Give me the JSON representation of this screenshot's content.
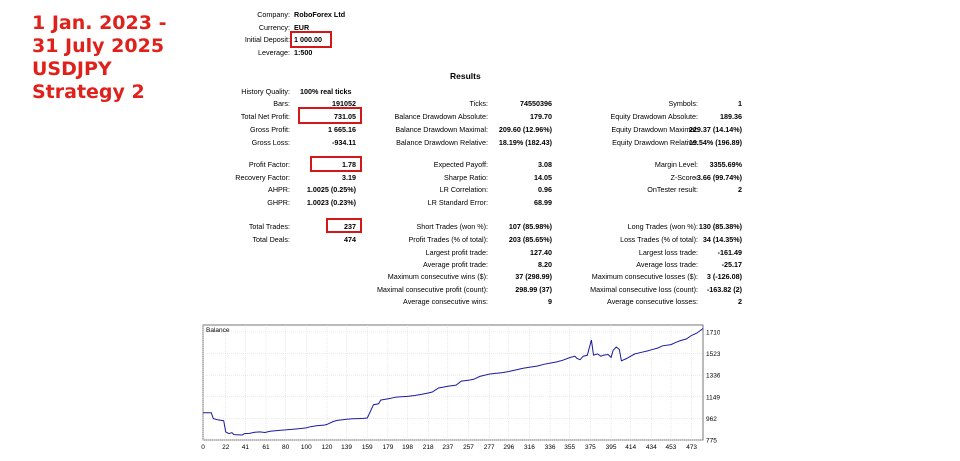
{
  "annotation": {
    "lines": [
      "1 Jan. 2023 -",
      "31 July 2025",
      "USDJPY",
      "Strategy 2"
    ],
    "color": "#e0201a"
  },
  "header": {
    "company_label": "Company:",
    "company_value": "RoboForex Ltd",
    "currency_label": "Currency:",
    "currency_value": "EUR",
    "deposit_label": "Initial Deposit:",
    "deposit_value": "1 000.00",
    "leverage_label": "Leverage:",
    "leverage_value": "1:500"
  },
  "results_title": "Results",
  "stats": {
    "history_quality_label": "History Quality:",
    "history_quality_value": "100% real ticks",
    "bars_label": "Bars:",
    "bars_value": "191052",
    "ticks_label": "Ticks:",
    "ticks_value": "74550396",
    "symbols_label": "Symbols:",
    "symbols_value": "1",
    "net_profit_label": "Total Net Profit:",
    "net_profit_value": "731.05",
    "bal_dd_abs_label": "Balance Drawdown Absolute:",
    "bal_dd_abs_value": "179.70",
    "eq_dd_abs_label": "Equity Drawdown Absolute:",
    "eq_dd_abs_value": "189.36",
    "gross_profit_label": "Gross Profit:",
    "gross_profit_value": "1 665.16",
    "bal_dd_max_label": "Balance Drawdown Maximal:",
    "bal_dd_max_value": "209.60 (12.96%)",
    "eq_dd_max_label": "Equity Drawdown Maximal:",
    "eq_dd_max_value": "229.37 (14.14%)",
    "gross_loss_label": "Gross Loss:",
    "gross_loss_value": "-934.11",
    "bal_dd_rel_label": "Balance Drawdown Relative:",
    "bal_dd_rel_value": "18.19% (182.43)",
    "eq_dd_rel_label": "Equity Drawdown Relative:",
    "eq_dd_rel_value": "19.54% (196.89)",
    "profit_factor_label": "Profit Factor:",
    "profit_factor_value": "1.78",
    "expected_payoff_label": "Expected Payoff:",
    "expected_payoff_value": "3.08",
    "margin_level_label": "Margin Level:",
    "margin_level_value": "3355.69%",
    "recovery_factor_label": "Recovery Factor:",
    "recovery_factor_value": "3.19",
    "sharpe_label": "Sharpe Ratio:",
    "sharpe_value": "14.05",
    "zscore_label": "Z-Score:",
    "zscore_value": "-3.66 (99.74%)",
    "ahpr_label": "AHPR:",
    "ahpr_value": "1.0025 (0.25%)",
    "lr_corr_label": "LR Correlation:",
    "lr_corr_value": "0.96",
    "ontester_label": "OnTester result:",
    "ontester_value": "2",
    "ghpr_label": "GHPR:",
    "ghpr_value": "1.0023 (0.23%)",
    "lr_err_label": "LR Standard Error:",
    "lr_err_value": "68.99",
    "total_trades_label": "Total Trades:",
    "total_trades_value": "237",
    "short_label": "Short Trades (won %):",
    "short_value": "107 (85.98%)",
    "long_label": "Long Trades (won %):",
    "long_value": "130 (85.38%)",
    "total_deals_label": "Total Deals:",
    "total_deals_value": "474",
    "profit_trades_label": "Profit Trades (% of total):",
    "profit_trades_value": "203 (85.65%)",
    "loss_trades_label": "Loss Trades (% of total):",
    "loss_trades_value": "34 (14.35%)",
    "largest_profit_label": "Largest profit trade:",
    "largest_profit_value": "127.40",
    "largest_loss_label": "Largest loss trade:",
    "largest_loss_value": "-161.49",
    "avg_profit_label": "Average profit trade:",
    "avg_profit_value": "8.20",
    "avg_loss_label": "Average loss trade:",
    "avg_loss_value": "-25.17",
    "max_cons_wins_label": "Maximum consecutive wins ($):",
    "max_cons_wins_value": "37 (298.99)",
    "max_cons_losses_label": "Maximum consecutive losses ($):",
    "max_cons_losses_value": "3 (-126.08)",
    "maximal_cons_profit_label": "Maximal consecutive profit (count):",
    "maximal_cons_profit_value": "298.99 (37)",
    "maximal_cons_loss_label": "Maximal consecutive loss (count):",
    "maximal_cons_loss_value": "-163.82 (2)",
    "avg_cons_wins_label": "Average consecutive wins:",
    "avg_cons_wins_value": "9",
    "avg_cons_losses_label": "Average consecutive losses:",
    "avg_cons_losses_value": "2"
  },
  "chart_data": {
    "type": "line",
    "title": "Balance",
    "xlabel": "",
    "ylabel": "",
    "x_ticks": [
      "0",
      "22",
      "41",
      "61",
      "80",
      "100",
      "120",
      "139",
      "159",
      "179",
      "198",
      "218",
      "237",
      "257",
      "277",
      "296",
      "316",
      "336",
      "355",
      "375",
      "395",
      "414",
      "434",
      "453",
      "473"
    ],
    "y_ticks": [
      "775",
      "962",
      "1149",
      "1336",
      "1523",
      "1710"
    ],
    "ylim": [
      775,
      1770
    ],
    "xlim": [
      0,
      484
    ],
    "line_color": "#1a1aa0",
    "grid": true,
    "series": [
      {
        "x": [
          0,
          8,
          10,
          14,
          20,
          22,
          25,
          28,
          30,
          38,
          40,
          45,
          50,
          55,
          60,
          65,
          70,
          75,
          80,
          90,
          100,
          104,
          110,
          118,
          120,
          126,
          130,
          135,
          139,
          145,
          150,
          155,
          159,
          165,
          170,
          172,
          178,
          182,
          186,
          190,
          198,
          205,
          212,
          218,
          222,
          228,
          232,
          237,
          245,
          250,
          257,
          262,
          268,
          277,
          282,
          290,
          296,
          302,
          310,
          316,
          324,
          330,
          336,
          342,
          348,
          355,
          360,
          362,
          365,
          368,
          372,
          376,
          378,
          382,
          385,
          388,
          392,
          395,
          397,
          400,
          403,
          405,
          410,
          414,
          418,
          425,
          430,
          434,
          440,
          445,
          453,
          458,
          462,
          468,
          473,
          478,
          484
        ],
        "y": [
          1010,
          1010,
          960,
          950,
          942,
          845,
          830,
          838,
          822,
          818,
          830,
          832,
          842,
          845,
          840,
          850,
          855,
          860,
          862,
          870,
          880,
          890,
          898,
          905,
          910,
          935,
          945,
          950,
          955,
          958,
          960,
          962,
          965,
          1080,
          1088,
          1120,
          1130,
          1136,
          1145,
          1148,
          1152,
          1160,
          1170,
          1182,
          1190,
          1225,
          1232,
          1240,
          1250,
          1285,
          1292,
          1300,
          1325,
          1345,
          1350,
          1358,
          1368,
          1380,
          1395,
          1405,
          1415,
          1430,
          1440,
          1450,
          1465,
          1488,
          1500,
          1480,
          1470,
          1500,
          1508,
          1640,
          1510,
          1520,
          1500,
          1510,
          1515,
          1490,
          1550,
          1580,
          1560,
          1460,
          1480,
          1500,
          1520,
          1535,
          1545,
          1555,
          1570,
          1590,
          1600,
          1620,
          1635,
          1650,
          1680,
          1700,
          1740
        ]
      }
    ]
  }
}
